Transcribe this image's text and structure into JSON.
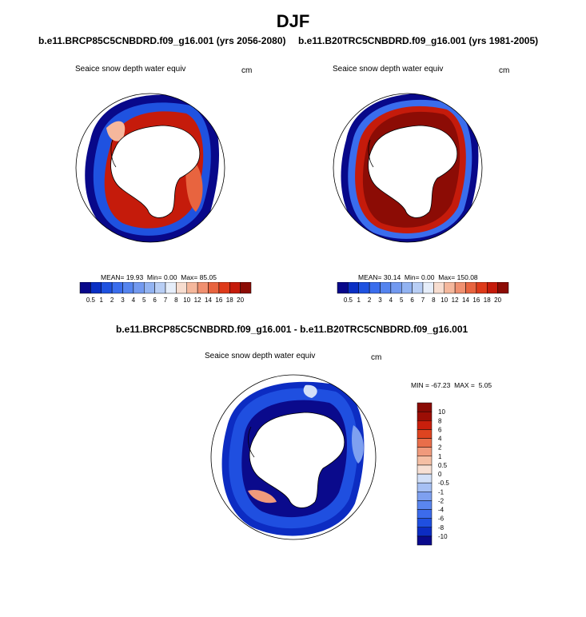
{
  "page": {
    "title": "DJF"
  },
  "panels": [
    {
      "id": "future",
      "run_title": "b.e11.BRCP85C5CNBDRD.f09_g16.001 (yrs 2056-2080)",
      "variable": "Seaice snow depth water equiv",
      "units": "cm",
      "stats": {
        "mean_label": "MEAN=",
        "mean": "19.93",
        "min_label": "Min=",
        "min": "0.00",
        "max_label": "Max=",
        "max": "85.05"
      }
    },
    {
      "id": "historical",
      "run_title": "b.e11.B20TRC5CNBDRD.f09_g16.001 (yrs 1981-2005)",
      "variable": "Seaice snow depth water equiv",
      "units": "cm",
      "stats": {
        "mean_label": "MEAN=",
        "mean": "30.14",
        "min_label": "Min=",
        "min": "0.00",
        "max_label": "Max=",
        "max": "150.08"
      }
    },
    {
      "id": "difference",
      "run_title": "b.e11.BRCP85C5CNBDRD.f09_g16.001 - b.e11.B20TRC5CNBDRD.f09_g16.001",
      "variable": "Seaice snow depth water equiv",
      "units": "cm",
      "stats": {
        "min_label": "MIN =",
        "min": "-67.23",
        "max_label": "MAX =",
        "max": "5.05"
      }
    }
  ],
  "chart_data": [
    {
      "type": "heatmap",
      "name": "absolute colorbar",
      "orientation": "horizontal",
      "levels": [
        "0.5",
        "1",
        "2",
        "3",
        "4",
        "5",
        "6",
        "7",
        "8",
        "10",
        "12",
        "14",
        "16",
        "18",
        "20"
      ],
      "colors": [
        "#08088a",
        "#0a2fc4",
        "#1f52e0",
        "#3a6ded",
        "#5584ef",
        "#7299f0",
        "#92b3f2",
        "#b8cef5",
        "#e6eefa",
        "#f7ddd0",
        "#f5b79c",
        "#f09070",
        "#e8643f",
        "#de3a1a",
        "#c51b0b",
        "#8c0c05"
      ]
    },
    {
      "type": "heatmap",
      "name": "difference colorbar",
      "orientation": "vertical",
      "levels": [
        "-10",
        "-8",
        "-6",
        "-4",
        "-2",
        "-1",
        "-0.5",
        "0",
        "0.5",
        "1",
        "2",
        "4",
        "6",
        "8",
        "10"
      ],
      "colors": [
        "#0a0a8c",
        "#0c2cc2",
        "#1f4fe0",
        "#3c6bec",
        "#5a86ef",
        "#7ea0f0",
        "#a6c0f4",
        "#d2e0f8",
        "#f7e0d4",
        "#f5bfa4",
        "#f09a7c",
        "#e96e4a",
        "#de4420",
        "#c91f0c",
        "#9c0e05",
        "#8a0b05"
      ]
    }
  ],
  "map_fill": {
    "future": [
      "#08088a",
      "#1f52e0",
      "#92b3f2",
      "#f5b79c",
      "#e8643f",
      "#c51b0b",
      "#8c0c05"
    ],
    "historical": [
      "#08088a",
      "#3a6ded",
      "#b8cef5",
      "#c51b0b",
      "#8c0c05"
    ],
    "difference": [
      "#0c2cc2",
      "#1f4fe0",
      "#0a0a8c",
      "#7ea0f0",
      "#d2e0f8",
      "#f09a7c"
    ]
  }
}
